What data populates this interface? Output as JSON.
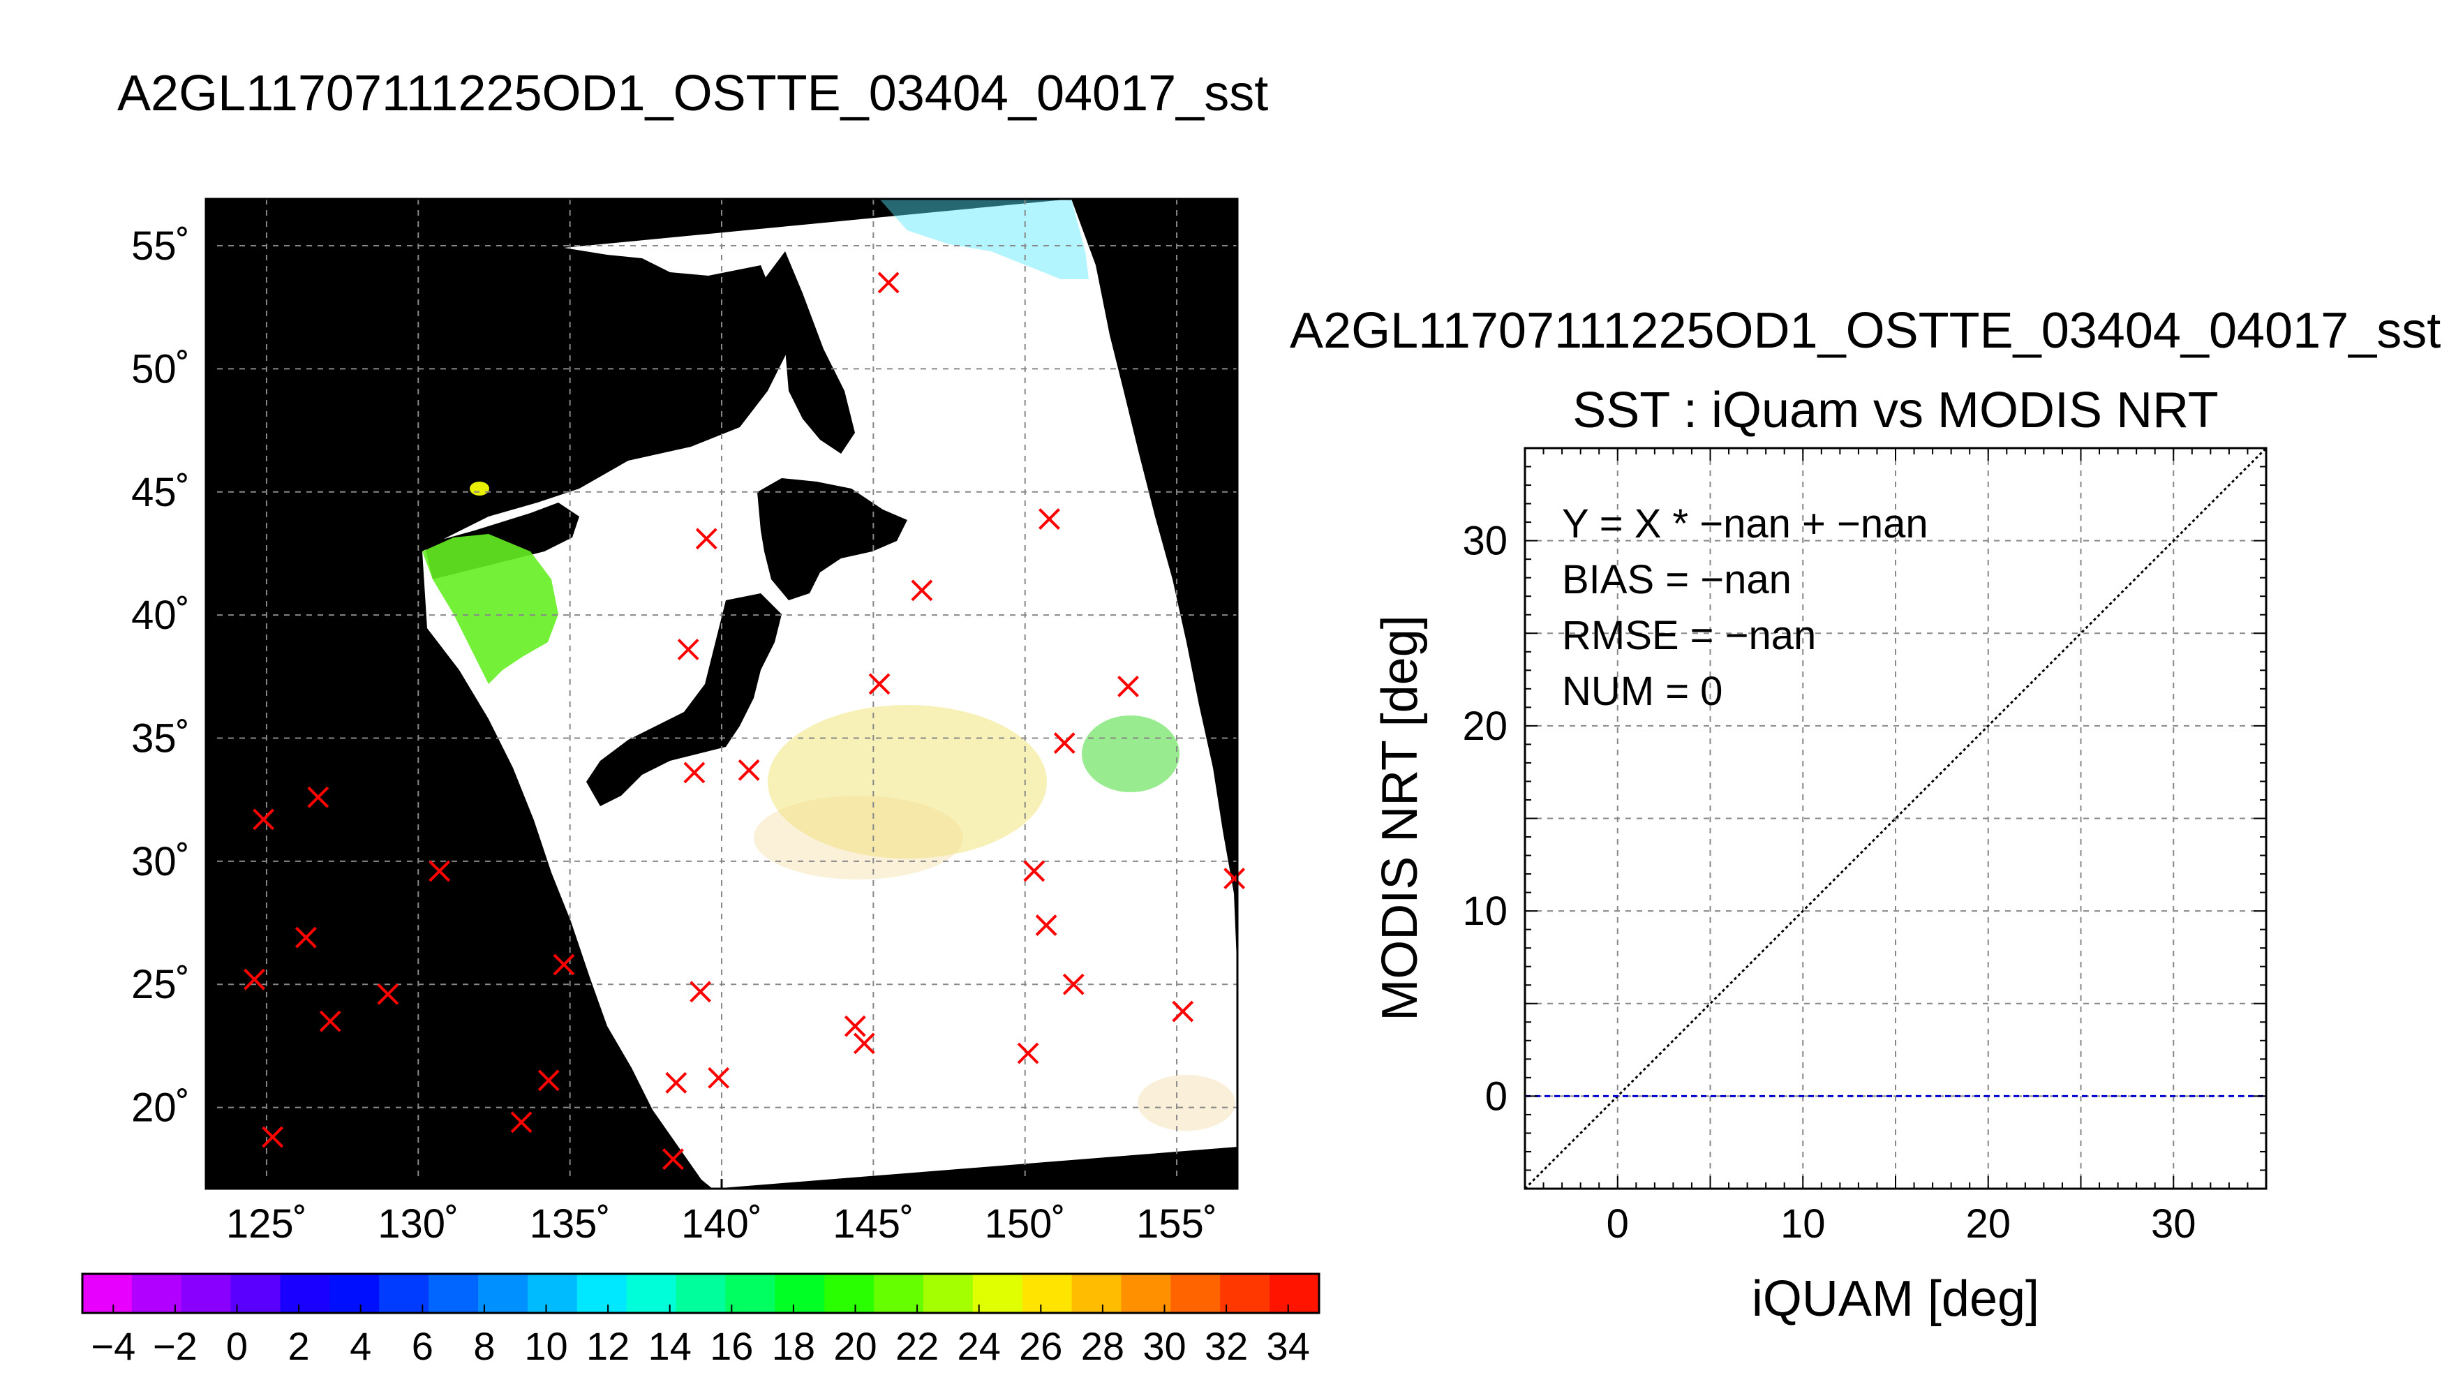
{
  "map_title": "A2GL11707111225OD1_OSTTE_03404_04017_sst",
  "scatter_title": "A2GL11707111225OD1_OSTTE_03404_04017_sst",
  "scatter_subtitle": "SST : iQuam vs MODIS NRT",
  "chart_data": [
    {
      "type": "scatter",
      "name": "map",
      "x_ticks": [
        125,
        130,
        135,
        140,
        145,
        150,
        155
      ],
      "x_tick_labels": [
        "125˚",
        "130˚",
        "135˚",
        "140˚",
        "145˚",
        "150˚",
        "155˚"
      ],
      "y_ticks": [
        20,
        25,
        30,
        35,
        40,
        45,
        50,
        55
      ],
      "y_tick_labels": [
        "20˚",
        "25˚",
        "30˚",
        "35˚",
        "40˚",
        "45˚",
        "50˚",
        "55˚"
      ],
      "xlim": [
        123,
        157
      ],
      "ylim": [
        16.7,
        56.9
      ],
      "grid": true,
      "background_color": "#000000",
      "marker_color": "#ff0000",
      "marker": "x",
      "points": [
        {
          "lon": 124.9,
          "lat": 31.7
        },
        {
          "lon": 126.7,
          "lat": 32.6
        },
        {
          "lon": 124.6,
          "lat": 25.2
        },
        {
          "lon": 126.3,
          "lat": 26.9
        },
        {
          "lon": 127.1,
          "lat": 23.5
        },
        {
          "lon": 129.0,
          "lat": 24.6
        },
        {
          "lon": 125.2,
          "lat": 18.8
        },
        {
          "lon": 130.7,
          "lat": 29.6
        },
        {
          "lon": 134.8,
          "lat": 25.8
        },
        {
          "lon": 134.3,
          "lat": 21.1
        },
        {
          "lon": 133.4,
          "lat": 19.4
        },
        {
          "lon": 138.5,
          "lat": 21.0
        },
        {
          "lon": 138.4,
          "lat": 17.9
        },
        {
          "lon": 139.9,
          "lat": 21.2
        },
        {
          "lon": 139.3,
          "lat": 24.7
        },
        {
          "lon": 139.1,
          "lat": 33.6
        },
        {
          "lon": 140.9,
          "lat": 33.7
        },
        {
          "lon": 138.9,
          "lat": 38.6
        },
        {
          "lon": 139.5,
          "lat": 43.1
        },
        {
          "lon": 145.5,
          "lat": 53.5
        },
        {
          "lon": 146.6,
          "lat": 41.0
        },
        {
          "lon": 145.2,
          "lat": 37.2
        },
        {
          "lon": 150.8,
          "lat": 43.9
        },
        {
          "lon": 153.4,
          "lat": 37.1
        },
        {
          "lon": 151.3,
          "lat": 34.8
        },
        {
          "lon": 150.3,
          "lat": 29.6
        },
        {
          "lon": 150.7,
          "lat": 27.4
        },
        {
          "lon": 151.6,
          "lat": 25.0
        },
        {
          "lon": 144.4,
          "lat": 23.3
        },
        {
          "lon": 144.7,
          "lat": 22.6
        },
        {
          "lon": 150.1,
          "lat": 22.2
        },
        {
          "lon": 155.2,
          "lat": 23.9
        },
        {
          "lon": 156.9,
          "lat": 29.3
        }
      ]
    },
    {
      "type": "colorbar",
      "name": "sst-colorbar",
      "range": [
        -5,
        35
      ],
      "tick_values": [
        -4,
        -2,
        0,
        2,
        4,
        6,
        8,
        10,
        12,
        14,
        16,
        18,
        20,
        22,
        24,
        26,
        28,
        30,
        32,
        34
      ],
      "tick_labels": [
        "−4",
        "−2",
        "0",
        "2",
        "4",
        "6",
        "8",
        "10",
        "12",
        "14",
        "16",
        "18",
        "20",
        "22",
        "24",
        "26",
        "28",
        "30",
        "32",
        "34"
      ],
      "colors": [
        "#e800ff",
        "#b100ff",
        "#8a00ff",
        "#5a00ff",
        "#1a00ff",
        "#0010ff",
        "#003cff",
        "#0066ff",
        "#0090ff",
        "#00bcff",
        "#00e8ff",
        "#00ffd8",
        "#00ff9c",
        "#00ff60",
        "#00ff24",
        "#2aff00",
        "#66ff00",
        "#a4ff00",
        "#e0ff00",
        "#ffe400",
        "#ffbc00",
        "#ff9000",
        "#ff6400",
        "#ff3800",
        "#ff1400"
      ]
    },
    {
      "type": "scatter",
      "name": "iquam-vs-modis",
      "xlabel": "iQUAM [deg]",
      "ylabel": "MODIS NRT [deg]",
      "xlim": [
        -5,
        35
      ],
      "ylim": [
        -5,
        35
      ],
      "x_ticks": [
        0,
        10,
        20,
        30
      ],
      "x_tick_labels": [
        "0",
        "10",
        "20",
        "30"
      ],
      "y_ticks": [
        0,
        10,
        20,
        30
      ],
      "y_tick_labels": [
        "0",
        "10",
        "20",
        "30"
      ],
      "grid_step": 5,
      "grid": true,
      "lines": [
        {
          "kind": "one-to-one",
          "from": [
            -5,
            -5
          ],
          "to": [
            35,
            35
          ],
          "color": "#000000",
          "style": "dotted"
        },
        {
          "kind": "zero-line",
          "from": [
            -5,
            0
          ],
          "to": [
            35,
            0
          ],
          "color": "#0000cc",
          "style": "dashed"
        }
      ],
      "points": [],
      "annotations": [
        "Y = X * −nan + −nan",
        "BIAS = −nan",
        "RMSE = −nan",
        "NUM = 0"
      ]
    }
  ]
}
